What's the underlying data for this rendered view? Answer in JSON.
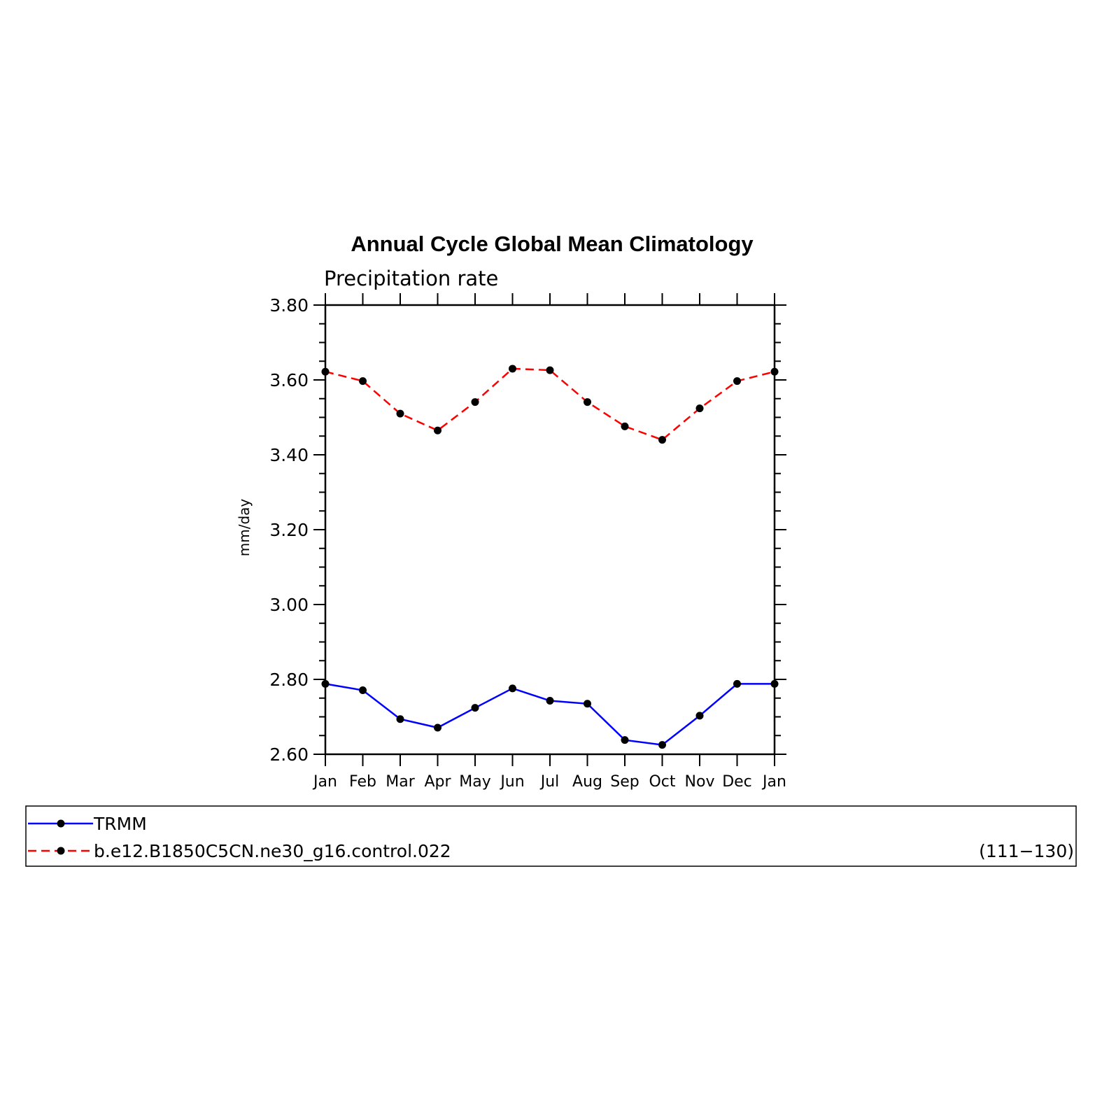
{
  "chart_data": {
    "type": "line",
    "title": "Annual Cycle Global Mean Climatology",
    "subtitle": "Precipitation rate",
    "ylabel": "mm/day",
    "xlabel": "",
    "ylim": [
      2.6,
      3.8
    ],
    "yticks": [
      "2.60",
      "2.80",
      "3.00",
      "3.20",
      "3.40",
      "3.60",
      "3.80"
    ],
    "ytick_values": [
      2.6,
      2.8,
      3.0,
      3.2,
      3.4,
      3.6,
      3.8
    ],
    "categories": [
      "Jan",
      "Feb",
      "Mar",
      "Apr",
      "May",
      "Jun",
      "Jul",
      "Aug",
      "Sep",
      "Oct",
      "Nov",
      "Dec",
      "Jan"
    ],
    "grid": false,
    "legend_placement": "bottom",
    "series": [
      {
        "name": "TRMM",
        "color": "#0000ff",
        "dash": "solid",
        "marker": "filled-circle",
        "values": [
          2.788,
          2.771,
          2.694,
          2.671,
          2.724,
          2.776,
          2.743,
          2.735,
          2.638,
          2.625,
          2.703,
          2.788,
          2.788
        ]
      },
      {
        "name": "b.e12.B1850C5CN.ne30_g16.control.022",
        "color": "#ff0000",
        "dash": "dashed",
        "marker": "filled-circle",
        "values": [
          3.622,
          3.597,
          3.51,
          3.465,
          3.541,
          3.63,
          3.626,
          3.541,
          3.476,
          3.44,
          3.524,
          3.597,
          3.622
        ]
      }
    ],
    "legend_note": "(111−130)"
  }
}
